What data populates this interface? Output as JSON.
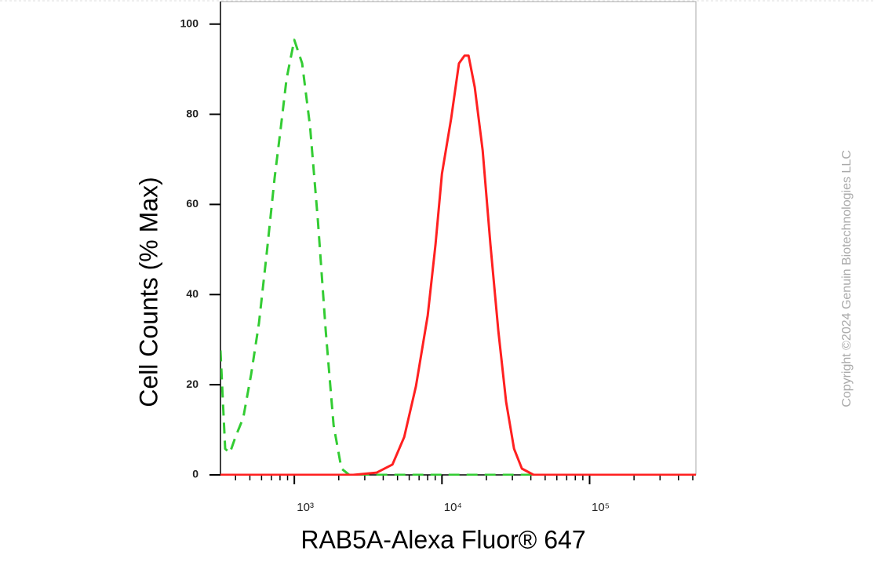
{
  "chart_data": {
    "type": "line",
    "x_label": "RAB5A-Alexa Fluor® 647",
    "y_label": "Cell Counts (% Max)",
    "copyright": "Copyright ©2024 Genuin Biotechnologies LLC",
    "xscale": "log",
    "xlim": [
      316,
      525000
    ],
    "ylim": [
      0,
      105
    ],
    "xticks": [
      {
        "value": 1000,
        "label": "10³"
      },
      {
        "value": 10000,
        "label": "10⁴"
      },
      {
        "value": 100000,
        "label": "10⁵"
      }
    ],
    "xminorticks": [
      400,
      500,
      600,
      700,
      800,
      900,
      2000,
      3000,
      4000,
      5000,
      6000,
      7000,
      8000,
      9000,
      20000,
      30000,
      40000,
      50000,
      60000,
      70000,
      80000,
      90000,
      200000,
      300000,
      400000,
      500000
    ],
    "yticks": [
      0,
      20,
      40,
      60,
      80,
      100
    ],
    "series": [
      {
        "color": "#33cc33",
        "dashed": true,
        "x": [
          316,
          340,
          366,
          399,
          451,
          510,
          576,
          651,
          736,
          812,
          885,
          1000,
          1130,
          1278,
          1444,
          1632,
          1844,
          2085,
          2356,
          10000,
          525000
        ],
        "values": [
          27.6,
          5.8,
          4.9,
          8.4,
          12.7,
          22.3,
          33.7,
          49.4,
          66,
          77.3,
          87.8,
          96.5,
          91.3,
          77.3,
          56.4,
          31.9,
          11,
          1.4,
          0,
          0,
          0
        ]
      },
      {
        "color": "#ff2020",
        "dashed": false,
        "x": [
          316,
          2504,
          3617,
          4619,
          5549,
          6668,
          8010,
          9039,
          10000,
          11543,
          13040,
          14230,
          15130,
          16680,
          18860,
          21300,
          24100,
          27200,
          30800,
          34800,
          41800,
          525000
        ],
        "values": [
          0,
          0,
          0.5,
          2.3,
          8.4,
          19.7,
          35.4,
          51.1,
          66.8,
          79,
          91.3,
          93,
          93,
          86,
          72,
          51.1,
          31.9,
          16.2,
          5.8,
          1.4,
          0,
          0
        ]
      }
    ]
  }
}
